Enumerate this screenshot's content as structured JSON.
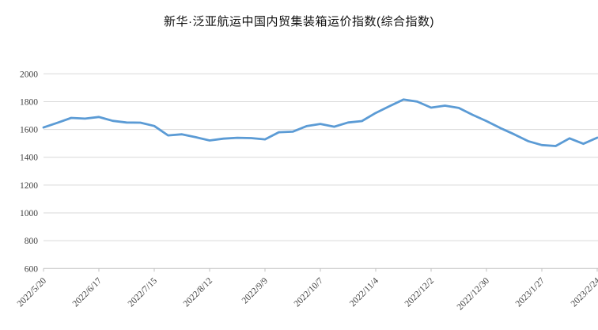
{
  "chart_data": {
    "type": "line",
    "title": "新华·泛亚航运中国内贸集装箱运价指数(综合指数)",
    "x": [
      "2022/5/20",
      "2022/5/27",
      "2022/6/3",
      "2022/6/10",
      "2022/6/17",
      "2022/6/24",
      "2022/7/1",
      "2022/7/8",
      "2022/7/15",
      "2022/7/22",
      "2022/7/29",
      "2022/8/5",
      "2022/8/12",
      "2022/8/19",
      "2022/8/26",
      "2022/9/2",
      "2022/9/9",
      "2022/9/16",
      "2022/9/23",
      "2022/9/30",
      "2022/10/7",
      "2022/10/14",
      "2022/10/21",
      "2022/10/28",
      "2022/11/4",
      "2022/11/11",
      "2022/11/18",
      "2022/11/25",
      "2022/12/2",
      "2022/12/9",
      "2022/12/16",
      "2022/12/23",
      "2022/12/30",
      "2023/1/6",
      "2023/1/13",
      "2023/1/20",
      "2023/1/27",
      "2023/2/3",
      "2023/2/10",
      "2023/2/17",
      "2023/2/24"
    ],
    "values": [
      1614,
      1648,
      1683,
      1678,
      1690,
      1662,
      1650,
      1649,
      1625,
      1557,
      1565,
      1544,
      1521,
      1534,
      1540,
      1538,
      1529,
      1580,
      1584,
      1624,
      1640,
      1620,
      1650,
      1660,
      1719,
      1768,
      1815,
      1800,
      1757,
      1771,
      1755,
      1705,
      1660,
      1610,
      1565,
      1516,
      1488,
      1481,
      1536,
      1497,
      1541
    ],
    "xlabel_every": 4,
    "ylim": [
      600,
      2000
    ],
    "ytick_step": 200,
    "yticks": [
      "600",
      "800",
      "1000",
      "1200",
      "1400",
      "1600",
      "1800",
      "2000"
    ],
    "xtick_labels_shown": [
      "2022/5/20",
      "2022/6/17",
      "2022/7/15",
      "2022/8/12",
      "2022/9/9",
      "2022/10/7",
      "2022/11/4",
      "2022/12/2",
      "2022/12/30",
      "2023/1/27",
      "2023/2/24"
    ],
    "grid": "horizontal",
    "legend": "none",
    "xlabel": "",
    "ylabel": "",
    "line_color": "#5B9BD5",
    "gridline_color": "#D9D9D9",
    "axis_color": "#C0C0C0",
    "label_color": "#3F3F3F",
    "background_color": "#FFFFFF"
  }
}
